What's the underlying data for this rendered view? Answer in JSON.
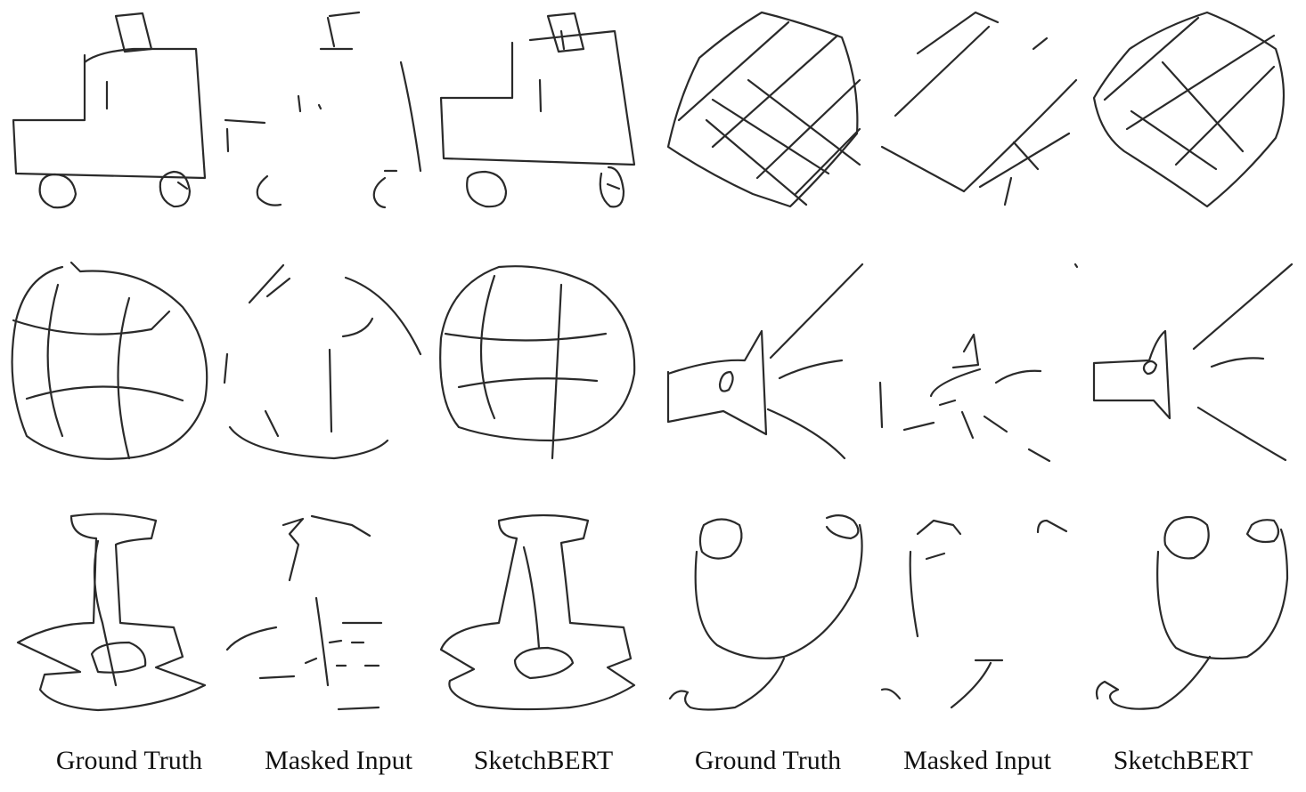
{
  "figure": {
    "columns": [
      "Ground Truth",
      "Masked Input",
      "SketchBERT",
      "Ground Truth",
      "Masked Input",
      "SketchBERT"
    ],
    "rows": [
      [
        "truck",
        "truck",
        "truck",
        "grid-pillow",
        "grid-pillow",
        "grid-pillow"
      ],
      [
        "globe",
        "globe",
        "globe",
        "megaphone",
        "megaphone",
        "megaphone"
      ],
      [
        "table",
        "table",
        "table",
        "stethoscope",
        "stethoscope",
        "stethoscope"
      ]
    ]
  },
  "colors": {
    "stroke": "#2a2a2a",
    "caption": "#111111",
    "background": "#ffffff"
  }
}
